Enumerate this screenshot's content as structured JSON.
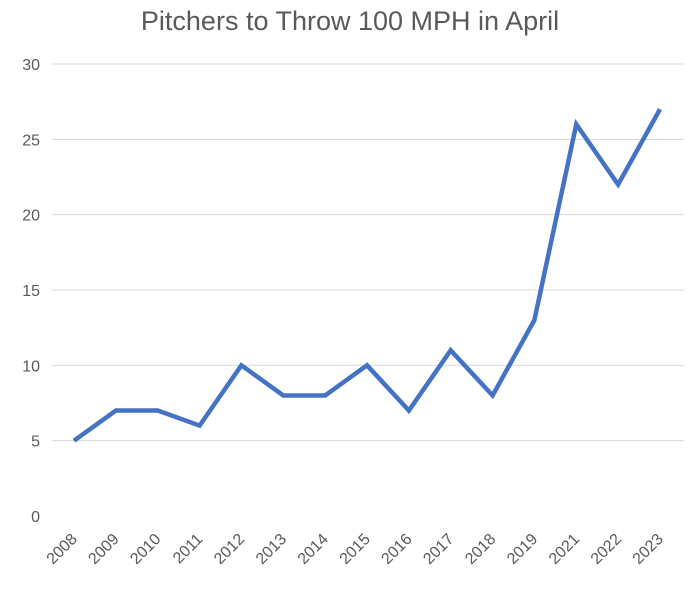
{
  "chart_data": {
    "type": "line",
    "title": "Pitchers to Throw 100 MPH in April",
    "xlabel": "",
    "ylabel": "",
    "categories": [
      "2008",
      "2009",
      "2010",
      "2011",
      "2012",
      "2013",
      "2014",
      "2015",
      "2016",
      "2017",
      "2018",
      "2019",
      "2021",
      "2022",
      "2023"
    ],
    "series": [
      {
        "values": [
          5,
          7,
          7,
          6,
          10,
          8,
          8,
          10,
          7,
          11,
          8,
          13,
          26,
          22,
          27
        ],
        "color": "#4472c4"
      }
    ],
    "ylim": [
      0,
      30
    ],
    "yticks": [
      0,
      5,
      10,
      15,
      20,
      25,
      30
    ],
    "grid": true,
    "legend": "none"
  }
}
